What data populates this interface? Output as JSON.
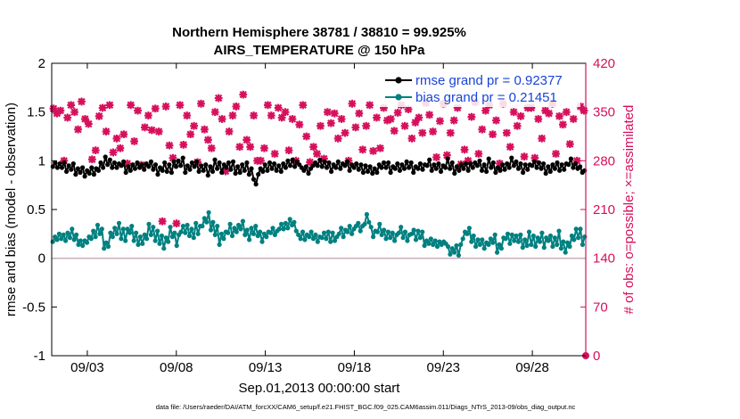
{
  "chart_data": {
    "type": "line",
    "title_line1": "Northern Hemisphere 38781 / 38810 = 99.925%",
    "title_line2": "AIRS_TEMPERATURE @ 150 hPa",
    "xlabel": "Sep.01,2013 00:00:00 start",
    "ylabel_left": "rmse and bias (model - observation)",
    "ylabel_right": "# of obs: o=possible; ×=assimilated",
    "x_range": [
      1.0,
      31.0
    ],
    "ylim_left": [
      -1,
      2
    ],
    "ylim_right": [
      0,
      420
    ],
    "x_ticks": [
      {
        "day": 3,
        "label": "09/03"
      },
      {
        "day": 8,
        "label": "09/08"
      },
      {
        "day": 13,
        "label": "09/13"
      },
      {
        "day": 18,
        "label": "09/18"
      },
      {
        "day": 23,
        "label": "09/23"
      },
      {
        "day": 28,
        "label": "09/28"
      }
    ],
    "y_ticks_left": [
      "-1",
      "-0.5",
      "0",
      "0.5",
      "1",
      "1.5",
      "2"
    ],
    "y_ticks_right": [
      "0",
      "70",
      "140",
      "210",
      "280",
      "350",
      "420"
    ],
    "legend": [
      {
        "label": "rmse grand pr = 0.92377",
        "color": "#000000"
      },
      {
        "label": "bias grand pr = 0.21451",
        "color": "#008080"
      }
    ],
    "footer": "data file: /Users/raeder/DAI/ATM_forcXX/CAM6_setup/f.e21.FHIST_BGC.f09_025.CAM6assim.011/Diags_NTrS_2013-09/obs_diag_output.nc",
    "colors": {
      "rmse": "#000000",
      "bias": "#008080",
      "obs": "#d6105c",
      "zero_line": "#c8a8b4"
    },
    "series": [
      {
        "name": "rmse",
        "axis": "left",
        "values": [
          0.94,
          0.98,
          0.93,
          0.97,
          0.93,
          0.98,
          0.89,
          0.95,
          0.91,
          0.97,
          0.86,
          0.92,
          0.88,
          0.93,
          0.84,
          0.9,
          0.87,
          0.93,
          0.86,
          0.92,
          0.9,
          0.98,
          0.93,
          1.04,
          0.96,
          1.01,
          0.93,
          0.98,
          0.93,
          0.97,
          0.95,
          0.99,
          0.88,
          0.94,
          0.9,
          0.96,
          0.92,
          0.98,
          0.93,
          0.96,
          0.91,
          0.97,
          0.94,
          0.99,
          0.91,
          0.96,
          0.86,
          0.93,
          0.9,
          0.98,
          0.89,
          0.96,
          0.88,
          0.99,
          0.94,
          1.0,
          0.95,
          1.03,
          0.88,
          0.95,
          0.91,
          0.98,
          0.94,
          0.99,
          0.89,
          0.95,
          0.9,
          0.96,
          0.85,
          0.94,
          0.89,
          1.01,
          0.92,
          0.98,
          0.88,
          0.96,
          0.93,
          0.98,
          0.91,
          0.99,
          0.87,
          0.94,
          0.88,
          0.96,
          0.9,
          0.98,
          0.86,
          0.92,
          0.81,
          0.76,
          0.86,
          0.92,
          0.89,
          0.96,
          0.9,
          0.98,
          0.92,
          0.97,
          0.9,
          0.95,
          0.89,
          0.97,
          0.93,
          1.0,
          0.95,
          1.01,
          0.94,
          0.99,
          0.96,
          0.93,
          0.9,
          0.94,
          0.87,
          0.92,
          0.95,
          0.98,
          0.95,
          1.01,
          0.94,
          0.99,
          0.93,
          0.98,
          0.89,
          0.96,
          0.93,
          0.99,
          0.92,
          0.97,
          0.95,
          0.99,
          0.9,
          0.96,
          0.93,
          0.97,
          0.91,
          0.96,
          0.88,
          0.95,
          0.89,
          0.94,
          0.87,
          0.92,
          0.88,
          0.96,
          0.93,
          0.98,
          0.93,
          0.98,
          0.88,
          0.94,
          0.92,
          0.97,
          0.9,
          0.96,
          0.92,
          0.99,
          0.93,
          0.98,
          0.88,
          0.94,
          0.92,
          0.97,
          0.91,
          0.96,
          0.95,
          1.01,
          0.9,
          0.96,
          0.92,
          0.97,
          0.89,
          0.95,
          0.93,
          1.02,
          0.92,
          0.98,
          0.87,
          0.94,
          0.9,
          0.96,
          0.92,
          0.97,
          0.9,
          0.97,
          0.93,
          0.98,
          0.95,
          1.0,
          0.9,
          0.96,
          0.89,
          1.02,
          0.93,
          0.98,
          0.88,
          0.93,
          0.9,
          0.96,
          0.91,
          0.97,
          0.93,
          1.03,
          0.95,
          0.99,
          0.92,
          0.97,
          0.88,
          0.96,
          0.91,
          0.96,
          0.95,
          0.99,
          0.93,
          0.98,
          0.92,
          0.97,
          0.87,
          0.94,
          0.89,
          0.96,
          0.92,
          0.98,
          0.9,
          0.96,
          0.91,
          0.97,
          0.96,
          1.02,
          0.93,
          0.97,
          0.92,
          0.94,
          0.88,
          0.9
        ]
      },
      {
        "name": "bias",
        "axis": "left",
        "values": [
          0.17,
          0.22,
          0.19,
          0.25,
          0.2,
          0.24,
          0.18,
          0.26,
          0.21,
          0.3,
          0.19,
          0.24,
          0.14,
          0.18,
          0.13,
          0.18,
          0.16,
          0.22,
          0.2,
          0.28,
          0.22,
          0.34,
          0.25,
          0.3,
          0.1,
          0.16,
          0.12,
          0.26,
          0.22,
          0.31,
          0.25,
          0.36,
          0.2,
          0.3,
          0.18,
          0.3,
          0.26,
          0.33,
          0.18,
          0.26,
          0.14,
          0.22,
          0.15,
          0.24,
          0.2,
          0.35,
          0.24,
          0.32,
          0.18,
          0.28,
          0.15,
          0.23,
          0.1,
          0.21,
          0.17,
          0.32,
          0.22,
          0.26,
          0.13,
          0.24,
          0.27,
          0.33,
          0.26,
          0.34,
          0.23,
          0.3,
          0.21,
          0.36,
          0.25,
          0.33,
          0.33,
          0.41,
          0.37,
          0.47,
          0.29,
          0.37,
          0.24,
          0.33,
          0.14,
          0.25,
          0.2,
          0.27,
          0.26,
          0.35,
          0.23,
          0.31,
          0.27,
          0.34,
          0.3,
          0.38,
          0.24,
          0.29,
          0.19,
          0.31,
          0.25,
          0.33,
          0.23,
          0.27,
          0.17,
          0.25,
          0.22,
          0.27,
          0.26,
          0.31,
          0.24,
          0.28,
          0.3,
          0.35,
          0.3,
          0.36,
          0.31,
          0.4,
          0.34,
          0.37,
          0.28,
          0.24,
          0.2,
          0.27,
          0.19,
          0.24,
          0.22,
          0.27,
          0.2,
          0.24,
          0.17,
          0.22,
          0.21,
          0.26,
          0.2,
          0.27,
          0.17,
          0.26,
          0.18,
          0.22,
          0.25,
          0.31,
          0.22,
          0.29,
          0.27,
          0.33,
          0.25,
          0.3,
          0.33,
          0.36,
          0.28,
          0.33,
          0.35,
          0.45,
          0.37,
          0.32,
          0.22,
          0.28,
          0.27,
          0.35,
          0.24,
          0.29,
          0.2,
          0.27,
          0.21,
          0.26,
          0.18,
          0.24,
          0.26,
          0.32,
          0.21,
          0.27,
          0.18,
          0.24,
          0.25,
          0.29,
          0.19,
          0.28,
          0.21,
          0.27,
          0.13,
          0.18,
          0.15,
          0.2,
          0.14,
          0.18,
          0.12,
          0.17,
          0.14,
          0.17,
          0.15,
          0.12,
          0.04,
          0.1,
          0.06,
          0.13,
          0.03,
          0.14,
          0.2,
          0.27,
          0.25,
          0.31,
          0.17,
          0.23,
          0.12,
          0.19,
          0.14,
          0.19,
          0.1,
          0.16,
          0.14,
          0.2,
          0.16,
          0.24,
          0.06,
          0.14,
          0.1,
          0.21,
          0.2,
          0.25,
          0.15,
          0.24,
          0.18,
          0.23,
          0.17,
          0.24,
          0.11,
          0.19,
          0.13,
          0.27,
          0.14,
          0.23,
          0.12,
          0.21,
          0.17,
          0.26,
          0.11,
          0.21,
          0.18,
          0.23,
          0.12,
          0.21,
          0.14,
          0.28,
          0.1,
          0.17,
          0.06,
          0.16,
          0.12,
          0.23,
          0.19,
          0.3,
          0.21,
          0.3,
          0.14,
          0.22
        ]
      },
      {
        "name": "obs_assimilated",
        "axis": "right",
        "values": [
          355,
          348,
          352,
          280,
          342,
          360,
          350,
          325,
          365,
          340,
          333,
          282,
          295,
          344,
          356,
          322,
          360,
          292,
          312,
          298,
          318,
          276,
          360,
          308,
          352,
          274,
          328,
          345,
          324,
          355,
          322,
          193,
          358,
          302,
          284,
          190,
          360,
          303,
          345,
          318,
          330,
          278,
          362,
          325,
          310,
          298,
          350,
          370,
          340,
          265,
          322,
          345,
          358,
          300,
          375,
          310,
          300,
          345,
          280,
          280,
          298,
          360,
          345,
          290,
          356,
          342,
          350,
          295,
          340,
          280,
          332,
          360,
          315,
          278,
          300,
          290,
          330,
          283,
          350,
          334,
          348,
          312,
          340,
          320,
          280,
          362,
          328,
          348,
          296,
          330,
          360,
          294,
          342,
          298,
          356,
          338,
          340,
          323,
          349,
          360,
          330,
          354,
          312,
          335,
          342,
          320,
          363,
          346,
          322,
          285,
          337,
          362,
          288,
          320,
          338,
          356,
          275,
          296,
          280,
          343,
          364,
          290,
          325,
          352,
          360,
          318,
          338,
          276,
          362,
          320,
          300,
          350,
          330,
          344,
          286,
          356,
          356,
          284,
          340,
          312,
          352,
          348,
          362,
          290,
          344,
          332,
          350,
          304,
          340,
          280,
          358,
          352
        ]
      }
    ]
  }
}
